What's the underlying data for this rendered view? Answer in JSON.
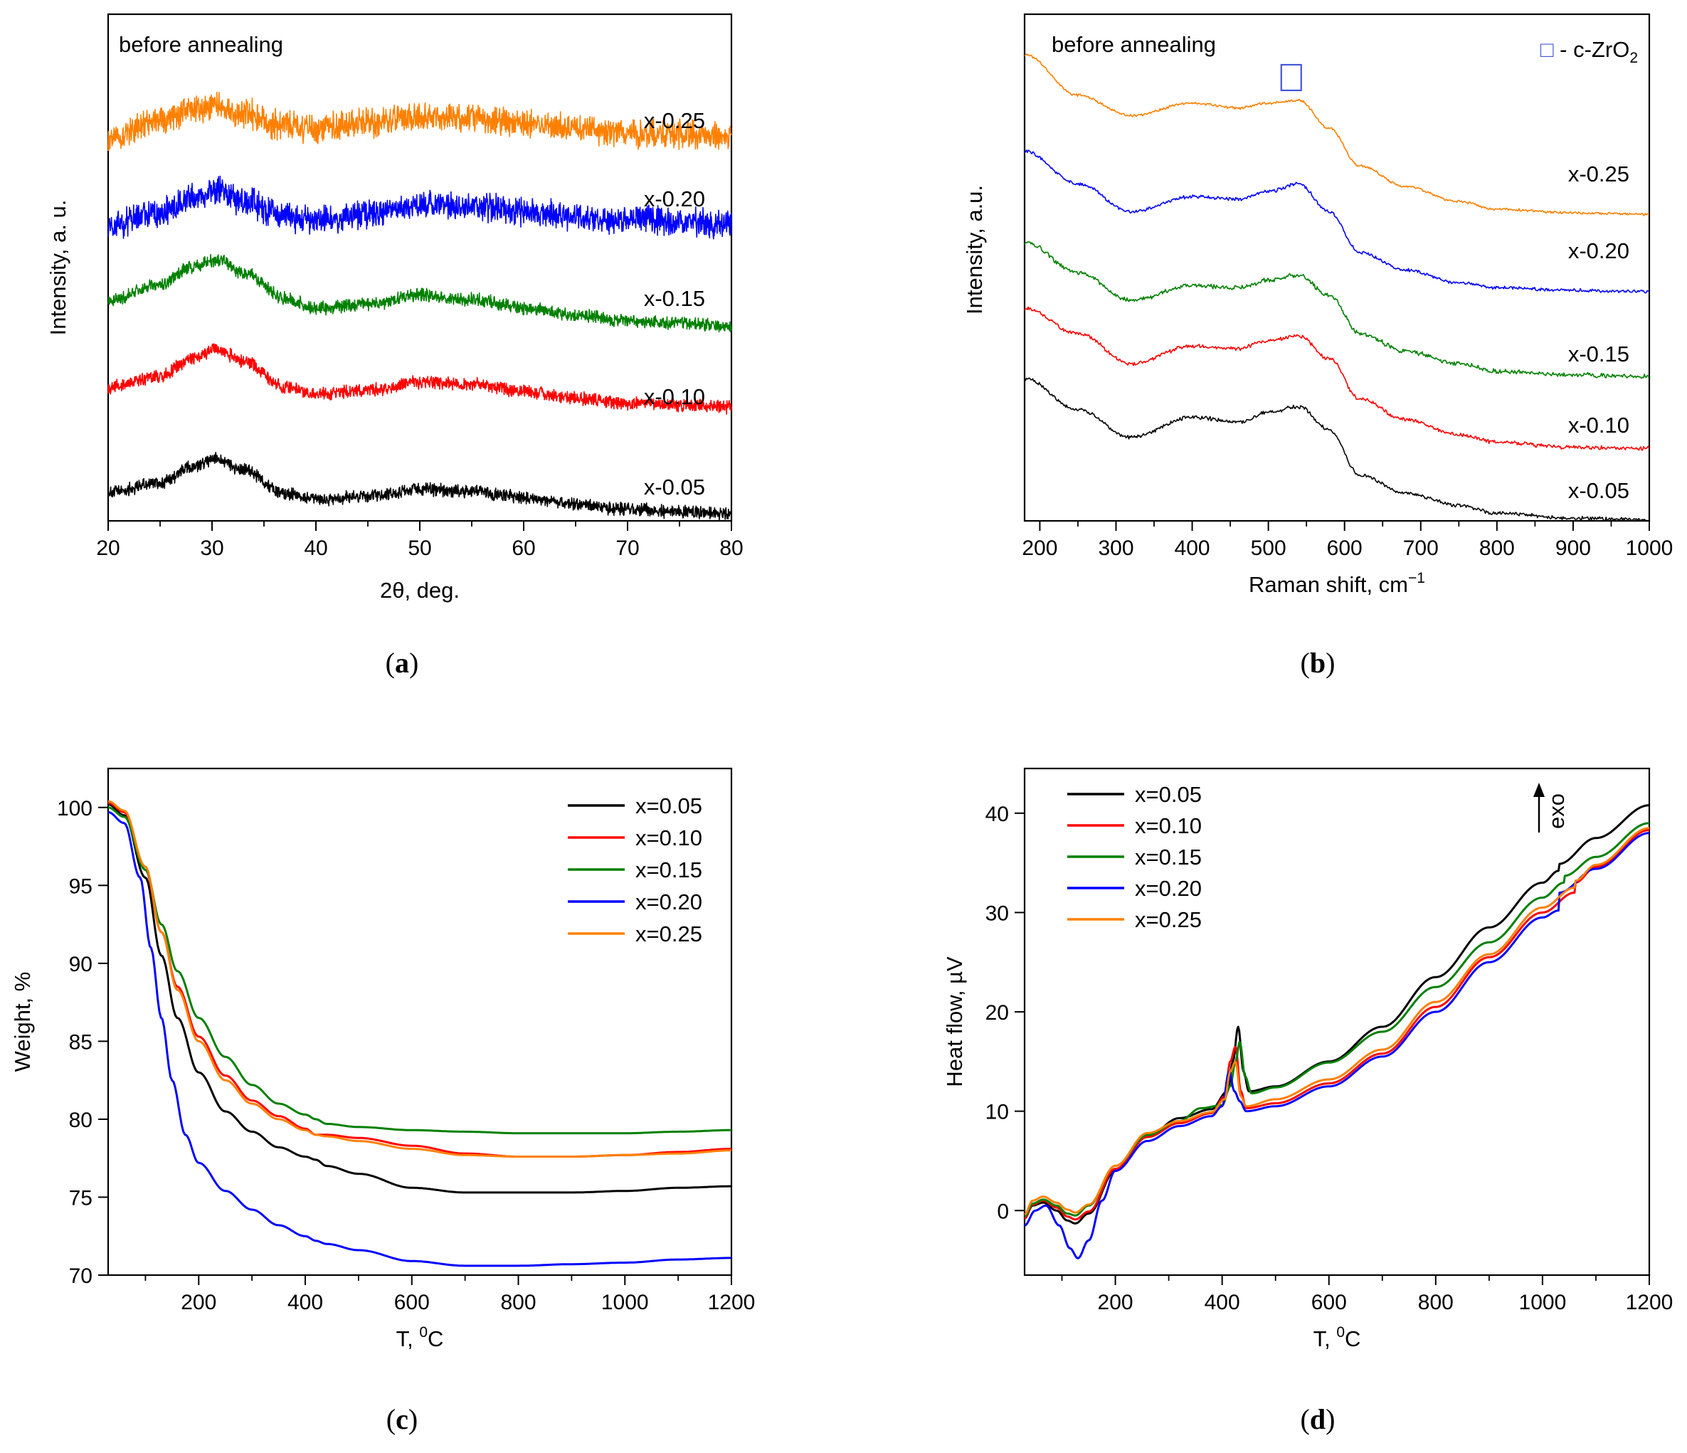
{
  "colors": {
    "x005": "#000000",
    "x010": "#ff0000",
    "x015": "#008000",
    "x020": "#0000ff",
    "x025": "#ff8000",
    "marker": "#4455dd"
  },
  "captions": [
    "a",
    "b",
    "c",
    "d"
  ],
  "chart_data": [
    {
      "id": "a",
      "type": "line",
      "title": "before annealing",
      "xlabel": "2θ, deg.",
      "ylabel": "Intensity, a. u.",
      "xlim": [
        20,
        80
      ],
      "ylim": [
        0,
        100
      ],
      "xticks": [
        "20",
        "30",
        "40",
        "50",
        "60",
        "70",
        "80"
      ],
      "yticks": [],
      "series": [
        {
          "name": "x-0.05",
          "color_key": "x005",
          "noise": 1.0,
          "x": [
            20,
            25,
            28,
            30.5,
            33,
            37,
            40,
            45,
            50,
            55,
            60,
            65,
            70,
            75,
            80
          ],
          "y": [
            5.6,
            7.5,
            10.5,
            12.3,
            10.0,
            5.5,
            4.2,
            4.8,
            6.2,
            5.8,
            4.6,
            3.2,
            2.3,
            1.8,
            1.5
          ]
        },
        {
          "name": "x-0.10",
          "color_key": "x010",
          "noise": 1.0,
          "x": [
            20,
            25,
            28,
            30.5,
            33,
            37,
            40,
            45,
            50,
            55,
            60,
            65,
            70,
            75,
            80
          ],
          "y": [
            26.5,
            28.5,
            32.0,
            34.0,
            31.5,
            26.5,
            25.0,
            25.8,
            27.3,
            27.0,
            25.5,
            24.2,
            23.3,
            22.8,
            22.5
          ]
        },
        {
          "name": "x-0.15",
          "color_key": "x015",
          "noise": 1.0,
          "x": [
            20,
            25,
            28,
            30.5,
            33,
            37,
            40,
            45,
            50,
            55,
            60,
            65,
            70,
            75,
            80
          ],
          "y": [
            43.5,
            46.5,
            50.0,
            51.5,
            49.0,
            44.0,
            42.0,
            42.8,
            44.5,
            43.8,
            42.0,
            40.5,
            39.5,
            39.0,
            38.5
          ]
        },
        {
          "name": "x-0.20",
          "color_key": "x020",
          "noise": 2.2,
          "x": [
            20,
            25,
            28,
            30.5,
            33,
            37,
            40,
            45,
            50,
            55,
            60,
            65,
            70,
            75,
            80
          ],
          "y": [
            58.0,
            61.0,
            63.5,
            65.5,
            63.0,
            60.0,
            59.5,
            60.5,
            62.5,
            62.0,
            61.0,
            60.0,
            59.5,
            59.0,
            58.5
          ]
        },
        {
          "name": "x-0.25",
          "color_key": "x025",
          "noise": 2.2,
          "x": [
            20,
            25,
            28,
            30.5,
            33,
            37,
            40,
            45,
            50,
            55,
            60,
            65,
            70,
            75,
            80
          ],
          "y": [
            75.5,
            79.0,
            81.0,
            82.0,
            80.5,
            78.0,
            77.5,
            78.5,
            80.0,
            79.5,
            78.5,
            77.5,
            76.5,
            76.5,
            76.0
          ]
        }
      ]
    },
    {
      "id": "b",
      "type": "line",
      "title": "before annealing",
      "xlabel": "Raman shift, cm",
      "xlabel_sup": "−1",
      "ylabel": "Intensity, a.u.",
      "xlim": [
        180,
        1000
      ],
      "ylim": [
        0,
        100
      ],
      "xticks": [
        "200",
        "300",
        "400",
        "500",
        "600",
        "700",
        "800",
        "900",
        "1000"
      ],
      "yticks": [],
      "legend": {
        "marker": "□",
        "text": " - c-ZrO",
        "sub": "2"
      },
      "peak_marker_x": 530,
      "series": [
        {
          "name": "x-0.05",
          "color_key": "x005",
          "noise": 0.3,
          "x": [
            180,
            250,
            320,
            400,
            460,
            500,
            540,
            580,
            620,
            680,
            750,
            800,
            900,
            1000
          ],
          "y": [
            28.0,
            22.0,
            16.5,
            20.5,
            19.5,
            21.5,
            22.5,
            18.0,
            9.0,
            5.5,
            3.0,
            1.5,
            0.5,
            0.2
          ]
        },
        {
          "name": "x-0.10",
          "color_key": "x010",
          "noise": 0.3,
          "x": [
            180,
            250,
            320,
            400,
            460,
            500,
            540,
            580,
            620,
            680,
            750,
            800,
            900,
            1000
          ],
          "y": [
            42.0,
            37.0,
            31.0,
            34.5,
            34.0,
            35.5,
            36.5,
            32.0,
            24.0,
            20.0,
            17.0,
            15.5,
            14.5,
            14.3
          ]
        },
        {
          "name": "x-0.15",
          "color_key": "x015",
          "noise": 0.35,
          "x": [
            180,
            250,
            320,
            400,
            460,
            500,
            540,
            580,
            620,
            680,
            750,
            800,
            900,
            1000
          ],
          "y": [
            55.0,
            49.0,
            43.5,
            46.5,
            46.0,
            47.5,
            48.5,
            44.5,
            37.0,
            33.5,
            31.0,
            29.5,
            28.8,
            28.5
          ]
        },
        {
          "name": "x-0.20",
          "color_key": "x020",
          "noise": 0.25,
          "x": [
            180,
            250,
            320,
            400,
            460,
            500,
            540,
            580,
            620,
            680,
            750,
            800,
            900,
            1000
          ],
          "y": [
            73.0,
            66.5,
            61.0,
            64.0,
            63.5,
            65.0,
            66.5,
            61.0,
            53.0,
            49.5,
            47.0,
            46.0,
            45.5,
            45.3
          ]
        },
        {
          "name": "x-0.25",
          "color_key": "x025",
          "noise": 0.2,
          "x": [
            180,
            250,
            320,
            400,
            460,
            500,
            540,
            580,
            620,
            680,
            750,
            800,
            900,
            1000
          ],
          "y": [
            92.0,
            84.0,
            80.0,
            82.5,
            81.5,
            82.5,
            83.0,
            77.5,
            70.0,
            66.0,
            63.0,
            61.5,
            60.8,
            60.5
          ]
        }
      ],
      "series_labels_at": [
        4,
        18,
        32,
        53,
        70
      ]
    },
    {
      "id": "c",
      "type": "line",
      "xlabel": "T, ",
      "xlabel_sup": "0",
      "xlabel_tail": "C",
      "ylabel": "Weight, %",
      "xlim": [
        30,
        1200
      ],
      "ylim": [
        70,
        102.5
      ],
      "xticks": [
        "200",
        "400",
        "600",
        "800",
        "1000",
        "1200"
      ],
      "yticks": [
        "70",
        "75",
        "80",
        "85",
        "90",
        "95",
        "100"
      ],
      "legend_position": "top-right",
      "series": [
        {
          "name": "x=0.05",
          "color_key": "x005",
          "x": [
            30,
            60,
            100,
            130,
            160,
            200,
            250,
            300,
            350,
            400,
            420,
            440,
            500,
            600,
            700,
            800,
            900,
            1000,
            1100,
            1200
          ],
          "y": [
            100.2,
            99.5,
            95.5,
            90.5,
            86.5,
            83.0,
            80.5,
            79.2,
            78.2,
            77.6,
            77.4,
            77.0,
            76.5,
            75.6,
            75.3,
            75.3,
            75.3,
            75.4,
            75.6,
            75.7
          ]
        },
        {
          "name": "x=0.10",
          "color_key": "x010",
          "x": [
            30,
            60,
            100,
            130,
            160,
            200,
            250,
            300,
            350,
            400,
            420,
            440,
            500,
            600,
            700,
            800,
            900,
            1000,
            1100,
            1200
          ],
          "y": [
            100.3,
            99.7,
            96.0,
            92.0,
            88.5,
            85.3,
            82.8,
            81.2,
            80.2,
            79.4,
            79.0,
            79.0,
            78.8,
            78.3,
            77.8,
            77.6,
            77.6,
            77.7,
            77.9,
            78.1
          ]
        },
        {
          "name": "x=0.15",
          "color_key": "x015",
          "x": [
            30,
            60,
            100,
            130,
            160,
            200,
            250,
            300,
            350,
            400,
            420,
            440,
            500,
            600,
            700,
            800,
            900,
            1000,
            1100,
            1200
          ],
          "y": [
            100.0,
            99.4,
            96.0,
            92.5,
            89.5,
            86.5,
            84.0,
            82.2,
            81.0,
            80.3,
            80.0,
            79.7,
            79.5,
            79.3,
            79.2,
            79.1,
            79.1,
            79.1,
            79.2,
            79.3
          ]
        },
        {
          "name": "x=0.20",
          "color_key": "x020",
          "x": [
            30,
            60,
            90,
            110,
            130,
            150,
            175,
            200,
            250,
            300,
            350,
            400,
            420,
            440,
            500,
            600,
            700,
            800,
            900,
            1000,
            1100,
            1200
          ],
          "y": [
            99.7,
            99.0,
            95.5,
            91.0,
            86.5,
            82.5,
            79.0,
            77.2,
            75.4,
            74.2,
            73.2,
            72.5,
            72.2,
            72.0,
            71.6,
            70.9,
            70.6,
            70.6,
            70.7,
            70.8,
            71.0,
            71.1
          ]
        },
        {
          "name": "x=0.25",
          "color_key": "x025",
          "x": [
            30,
            60,
            100,
            130,
            160,
            200,
            250,
            300,
            350,
            400,
            420,
            440,
            500,
            600,
            700,
            800,
            900,
            1000,
            1100,
            1200
          ],
          "y": [
            100.4,
            99.8,
            96.2,
            92.0,
            88.3,
            85.0,
            82.5,
            81.0,
            80.0,
            79.3,
            79.0,
            78.9,
            78.6,
            78.1,
            77.7,
            77.6,
            77.6,
            77.7,
            77.8,
            78.0
          ]
        }
      ]
    },
    {
      "id": "d",
      "type": "line",
      "xlabel": "T, ",
      "xlabel_sup": "0",
      "xlabel_tail": "C",
      "ylabel": "Heat flow, µV",
      "xlim": [
        30,
        1200
      ],
      "ylim": [
        -6.5,
        44.5
      ],
      "xticks": [
        "200",
        "400",
        "600",
        "800",
        "1000",
        "1200"
      ],
      "yticks": [
        "0",
        "10",
        "20",
        "30",
        "40"
      ],
      "legend_position": "top-left",
      "annotation": "exo",
      "series": [
        {
          "name": "x=0.05",
          "color_key": "x005",
          "x": [
            30,
            45,
            65,
            90,
            110,
            125,
            150,
            200,
            260,
            320,
            380,
            410,
            420,
            430,
            440,
            450,
            500,
            600,
            700,
            800,
            900,
            1000,
            1030,
            1031,
            1100,
            1200
          ],
          "y": [
            -0.8,
            0.5,
            0.8,
            0.0,
            -1.0,
            -1.3,
            -0.3,
            4.0,
            7.5,
            9.3,
            10.2,
            12.0,
            15.0,
            18.5,
            14.0,
            12.0,
            12.5,
            15.0,
            18.5,
            23.5,
            28.5,
            33.0,
            34.2,
            34.9,
            37.5,
            40.8
          ]
        },
        {
          "name": "x=0.10",
          "color_key": "x010",
          "x": [
            30,
            45,
            65,
            90,
            110,
            125,
            150,
            200,
            260,
            320,
            380,
            405,
            415,
            425,
            435,
            445,
            500,
            600,
            700,
            800,
            900,
            1000,
            1060,
            1061,
            1100,
            1200
          ],
          "y": [
            -0.8,
            0.6,
            1.0,
            0.3,
            -0.6,
            -0.9,
            -0.1,
            4.2,
            7.4,
            8.8,
            9.8,
            11.5,
            15.0,
            16.5,
            12.0,
            10.3,
            10.8,
            12.8,
            15.8,
            20.5,
            25.5,
            30.0,
            32.0,
            33.0,
            34.6,
            38.3
          ]
        },
        {
          "name": "x=0.15",
          "color_key": "x015",
          "x": [
            30,
            45,
            65,
            90,
            110,
            125,
            150,
            200,
            260,
            320,
            360,
            400,
            415,
            425,
            433,
            443,
            455,
            500,
            600,
            700,
            800,
            900,
            1000,
            1040,
            1041,
            1100,
            1200
          ],
          "y": [
            -0.6,
            0.7,
            1.1,
            0.5,
            -0.3,
            -0.5,
            0.5,
            4.5,
            7.6,
            9.0,
            10.3,
            10.6,
            12.5,
            15.0,
            17.0,
            13.5,
            11.8,
            12.4,
            14.9,
            18.0,
            22.5,
            27.0,
            31.5,
            33.0,
            33.7,
            35.6,
            39.0
          ]
        },
        {
          "name": "x=0.20",
          "color_key": "x020",
          "x": [
            30,
            50,
            70,
            95,
            115,
            130,
            150,
            175,
            200,
            260,
            320,
            380,
            400,
            413,
            423,
            433,
            445,
            500,
            600,
            700,
            800,
            900,
            1000,
            1030,
            1031,
            1100,
            1200
          ],
          "y": [
            -1.5,
            0.0,
            0.5,
            -1.5,
            -3.8,
            -4.8,
            -3.0,
            1.0,
            4.0,
            7.0,
            8.5,
            9.5,
            10.5,
            14.0,
            12.0,
            11.0,
            10.0,
            10.5,
            12.5,
            15.5,
            20.0,
            25.0,
            29.5,
            30.2,
            32.0,
            34.4,
            38.0
          ]
        },
        {
          "name": "x=0.25",
          "color_key": "x025",
          "x": [
            30,
            45,
            65,
            90,
            110,
            125,
            150,
            200,
            260,
            320,
            380,
            405,
            415,
            425,
            435,
            445,
            500,
            600,
            700,
            800,
            900,
            1000,
            1060,
            1061,
            1100,
            1200
          ],
          "y": [
            -0.4,
            1.0,
            1.4,
            0.8,
            0.1,
            -0.2,
            0.6,
            4.5,
            7.8,
            9.0,
            9.9,
            11.2,
            14.0,
            15.0,
            11.5,
            10.5,
            11.2,
            13.2,
            16.2,
            21.0,
            25.8,
            30.5,
            32.5,
            33.2,
            34.8,
            38.5
          ]
        }
      ]
    }
  ]
}
